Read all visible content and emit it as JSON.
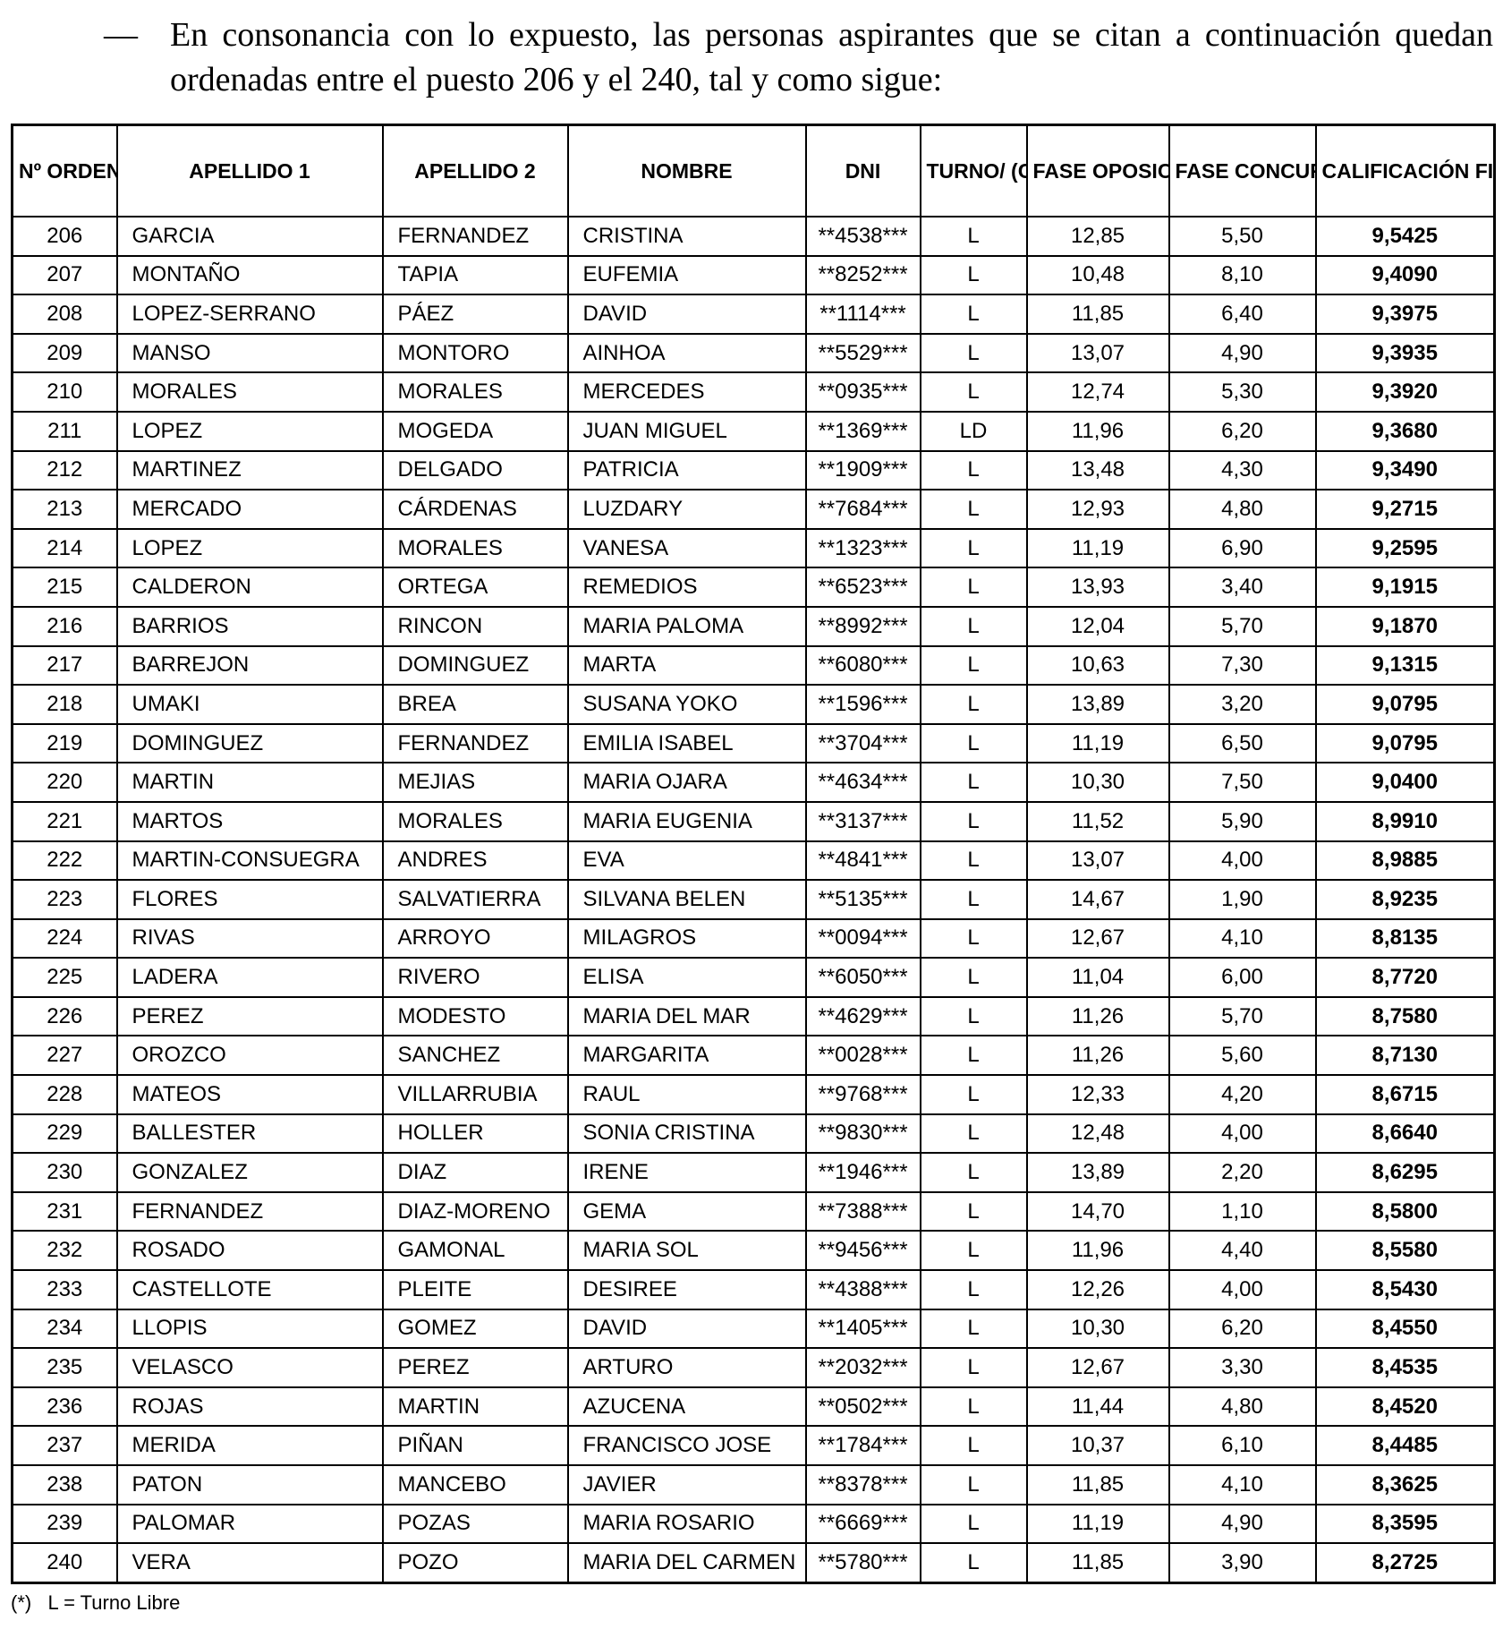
{
  "intro": {
    "dash": "—",
    "text": "En consonancia con lo expuesto, las personas aspirantes que se citan a continuación quedan ordenadas entre el puesto 206 y el 240, tal y como sigue:"
  },
  "table": {
    "headers": [
      "Nº ORDEN",
      "APELLIDO 1",
      "APELLIDO 2",
      "NOMBRE",
      "DNI",
      "TURNO/ (CUPO)*",
      "FASE OPOSICIÓN",
      "FASE CONCURSO",
      "CALIFICACIÓN FINAL (PONDERADA)"
    ],
    "rows": [
      [
        "206",
        "GARCIA",
        "FERNANDEZ",
        "CRISTINA",
        "**4538***",
        "L",
        "12,85",
        "5,50",
        "9,5425"
      ],
      [
        "207",
        "MONTAÑO",
        "TAPIA",
        "EUFEMIA",
        "**8252***",
        "L",
        "10,48",
        "8,10",
        "9,4090"
      ],
      [
        "208",
        "LOPEZ-SERRANO",
        "PÁEZ",
        "DAVID",
        "**1114***",
        "L",
        "11,85",
        "6,40",
        "9,3975"
      ],
      [
        "209",
        "MANSO",
        "MONTORO",
        "AINHOA",
        "**5529***",
        "L",
        "13,07",
        "4,90",
        "9,3935"
      ],
      [
        "210",
        "MORALES",
        "MORALES",
        "MERCEDES",
        "**0935***",
        "L",
        "12,74",
        "5,30",
        "9,3920"
      ],
      [
        "211",
        "LOPEZ",
        "MOGEDA",
        "JUAN MIGUEL",
        "**1369***",
        "LD",
        "11,96",
        "6,20",
        "9,3680"
      ],
      [
        "212",
        "MARTINEZ",
        "DELGADO",
        "PATRICIA",
        "**1909***",
        "L",
        "13,48",
        "4,30",
        "9,3490"
      ],
      [
        "213",
        "MERCADO",
        "CÁRDENAS",
        "LUZDARY",
        "**7684***",
        "L",
        "12,93",
        "4,80",
        "9,2715"
      ],
      [
        "214",
        "LOPEZ",
        "MORALES",
        "VANESA",
        "**1323***",
        "L",
        "11,19",
        "6,90",
        "9,2595"
      ],
      [
        "215",
        "CALDERON",
        "ORTEGA",
        "REMEDIOS",
        "**6523***",
        "L",
        "13,93",
        "3,40",
        "9,1915"
      ],
      [
        "216",
        "BARRIOS",
        "RINCON",
        "MARIA PALOMA",
        "**8992***",
        "L",
        "12,04",
        "5,70",
        "9,1870"
      ],
      [
        "217",
        "BARREJON",
        "DOMINGUEZ",
        "MARTA",
        "**6080***",
        "L",
        "10,63",
        "7,30",
        "9,1315"
      ],
      [
        "218",
        "UMAKI",
        "BREA",
        "SUSANA YOKO",
        "**1596***",
        "L",
        "13,89",
        "3,20",
        "9,0795"
      ],
      [
        "219",
        "DOMINGUEZ",
        "FERNANDEZ",
        "EMILIA ISABEL",
        "**3704***",
        "L",
        "11,19",
        "6,50",
        "9,0795"
      ],
      [
        "220",
        "MARTIN",
        "MEJIAS",
        "MARIA OJARA",
        "**4634***",
        "L",
        "10,30",
        "7,50",
        "9,0400"
      ],
      [
        "221",
        "MARTOS",
        "MORALES",
        "MARIA EUGENIA",
        "**3137***",
        "L",
        "11,52",
        "5,90",
        "8,9910"
      ],
      [
        "222",
        "MARTIN-CONSUEGRA",
        "ANDRES",
        "EVA",
        "**4841***",
        "L",
        "13,07",
        "4,00",
        "8,9885"
      ],
      [
        "223",
        "FLORES",
        "SALVATIERRA",
        "SILVANA BELEN",
        "**5135***",
        "L",
        "14,67",
        "1,90",
        "8,9235"
      ],
      [
        "224",
        "RIVAS",
        "ARROYO",
        "MILAGROS",
        "**0094***",
        "L",
        "12,67",
        "4,10",
        "8,8135"
      ],
      [
        "225",
        "LADERA",
        "RIVERO",
        "ELISA",
        "**6050***",
        "L",
        "11,04",
        "6,00",
        "8,7720"
      ],
      [
        "226",
        "PEREZ",
        "MODESTO",
        "MARIA DEL MAR",
        "**4629***",
        "L",
        "11,26",
        "5,70",
        "8,7580"
      ],
      [
        "227",
        "OROZCO",
        "SANCHEZ",
        "MARGARITA",
        "**0028***",
        "L",
        "11,26",
        "5,60",
        "8,7130"
      ],
      [
        "228",
        "MATEOS",
        "VILLARRUBIA",
        "RAUL",
        "**9768***",
        "L",
        "12,33",
        "4,20",
        "8,6715"
      ],
      [
        "229",
        "BALLESTER",
        "HOLLER",
        "SONIA CRISTINA",
        "**9830***",
        "L",
        "12,48",
        "4,00",
        "8,6640"
      ],
      [
        "230",
        "GONZALEZ",
        "DIAZ",
        "IRENE",
        "**1946***",
        "L",
        "13,89",
        "2,20",
        "8,6295"
      ],
      [
        "231",
        "FERNANDEZ",
        "DIAZ-MORENO",
        "GEMA",
        "**7388***",
        "L",
        "14,70",
        "1,10",
        "8,5800"
      ],
      [
        "232",
        "ROSADO",
        "GAMONAL",
        "MARIA SOL",
        "**9456***",
        "L",
        "11,96",
        "4,40",
        "8,5580"
      ],
      [
        "233",
        "CASTELLOTE",
        "PLEITE",
        "DESIREE",
        "**4388***",
        "L",
        "12,26",
        "4,00",
        "8,5430"
      ],
      [
        "234",
        "LLOPIS",
        "GOMEZ",
        "DAVID",
        "**1405***",
        "L",
        "10,30",
        "6,20",
        "8,4550"
      ],
      [
        "235",
        "VELASCO",
        "PEREZ",
        "ARTURO",
        "**2032***",
        "L",
        "12,67",
        "3,30",
        "8,4535"
      ],
      [
        "236",
        "ROJAS",
        "MARTIN",
        "AZUCENA",
        "**0502***",
        "L",
        "11,44",
        "4,80",
        "8,4520"
      ],
      [
        "237",
        "MERIDA",
        "PIÑAN",
        "FRANCISCO JOSE",
        "**1784***",
        "L",
        "10,37",
        "6,10",
        "8,4485"
      ],
      [
        "238",
        "PATON",
        "MANCEBO",
        "JAVIER",
        "**8378***",
        "L",
        "11,85",
        "4,10",
        "8,3625"
      ],
      [
        "239",
        "PALOMAR",
        "POZAS",
        "MARIA ROSARIO",
        "**6669***",
        "L",
        "11,19",
        "4,90",
        "8,3595"
      ],
      [
        "240",
        "VERA",
        "POZO",
        "MARIA DEL CARMEN",
        "**5780***",
        "L",
        "11,85",
        "3,90",
        "8,2725"
      ]
    ]
  },
  "footnote": "(*)   L = Turno Libre"
}
